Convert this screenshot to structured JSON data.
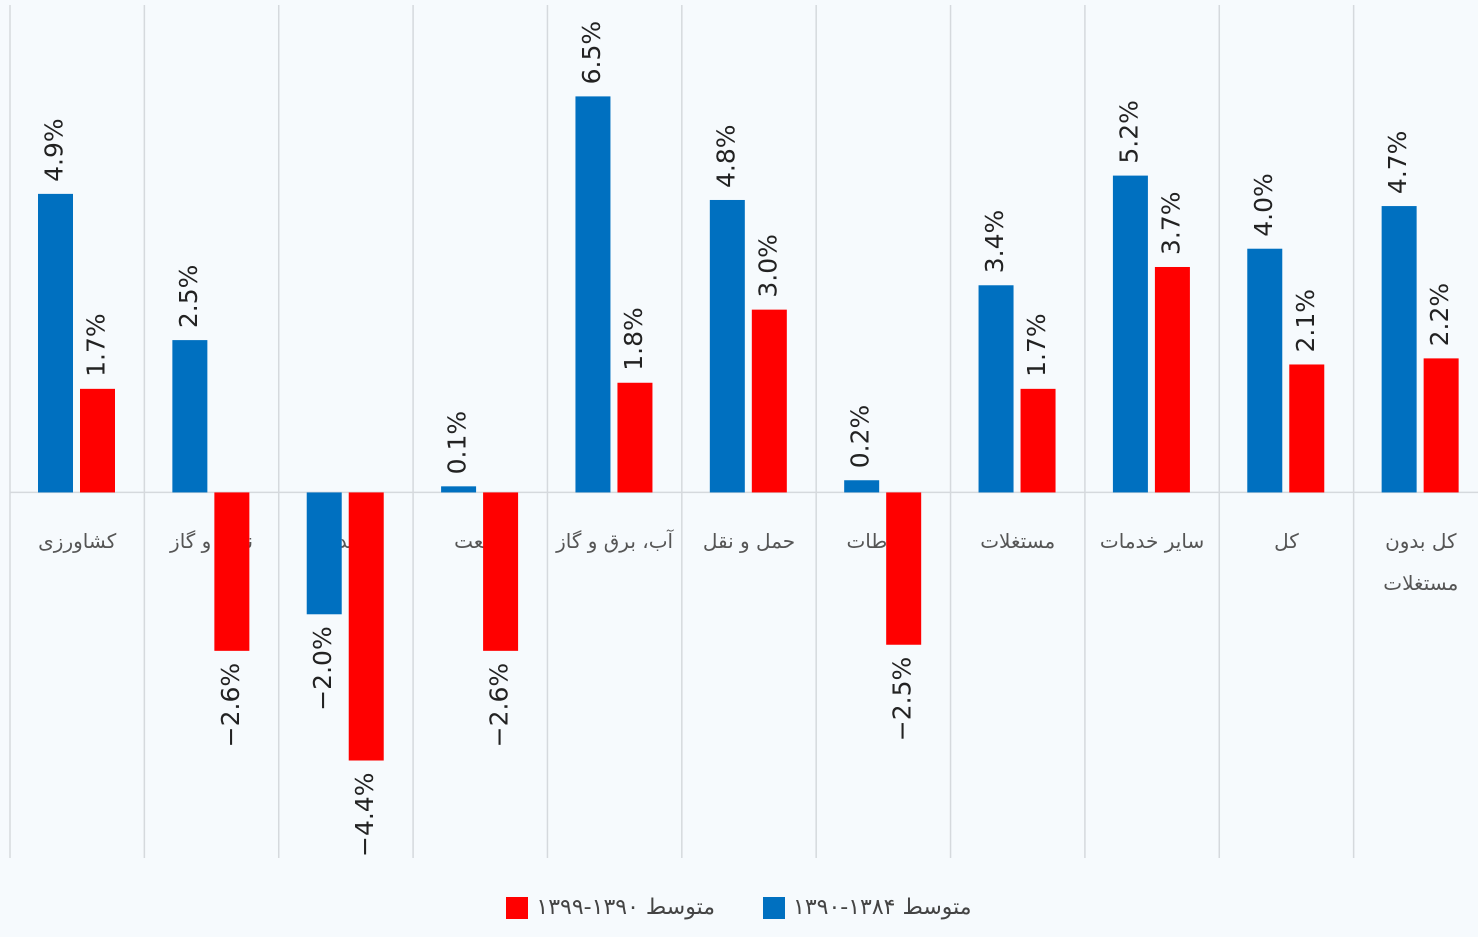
{
  "chart_data": {
    "type": "bar",
    "categories": [
      "کشاورزی",
      "نفت و گاز",
      "معدن",
      "صنعت",
      "آب، برق و گاز",
      "حمل و نقل",
      "ارتباطات",
      "مستغلات",
      "سایر خدمات",
      "کل",
      "کل بدون مستغلات"
    ],
    "series": [
      {
        "name": "متوسط ۱۳۸۴-۱۳۹۰",
        "color": "#0070c0",
        "values": [
          4.9,
          2.5,
          -2.0,
          0.1,
          6.5,
          4.8,
          0.2,
          3.4,
          5.2,
          4.0,
          4.7
        ],
        "value_labels": [
          "4.9%",
          "2.5%",
          "−2.0%",
          "0.1%",
          "6.5%",
          "4.8%",
          "0.2%",
          "3.4%",
          "5.2%",
          "4.0%",
          "4.7%"
        ]
      },
      {
        "name": "متوسط ۱۳۹۰-۱۳۹۹",
        "color": "#ff0000",
        "values": [
          1.7,
          -2.6,
          -4.4,
          -2.6,
          1.8,
          3.0,
          -2.5,
          1.7,
          3.7,
          2.1,
          2.2
        ],
        "value_labels": [
          "1.7%",
          "−2.6%",
          "−4.4%",
          "−2.6%",
          "1.8%",
          "3.0%",
          "−2.5%",
          "1.7%",
          "3.7%",
          "2.1%",
          "2.2%"
        ]
      }
    ],
    "ylim": [
      -6,
      8
    ],
    "legend": "bottom"
  }
}
